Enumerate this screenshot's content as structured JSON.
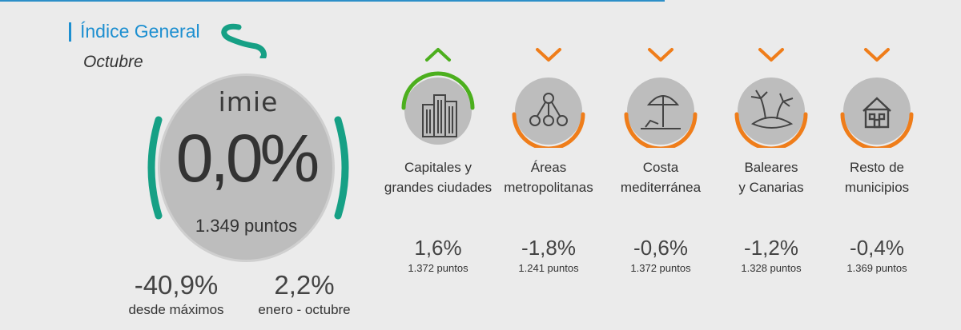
{
  "header": {
    "title": "Índice General",
    "subtitle": "Octubre"
  },
  "main": {
    "logo": "imie",
    "value": "0,0%",
    "points": "1.349 puntos",
    "trend_color": "#16a085"
  },
  "stats": [
    {
      "value": "-40,9%",
      "label": "desde máximos"
    },
    {
      "value": "2,2%",
      "label": "enero - octubre"
    }
  ],
  "regions": [
    {
      "line1": "Capitales y",
      "line2": "grandes ciudades",
      "value": "1,6%",
      "points": "1.372 puntos",
      "direction": "up",
      "color": "#4caf1e",
      "icon": "buildings-icon"
    },
    {
      "line1": "Áreas",
      "line2": "metropolitanas",
      "value": "-1,8%",
      "points": "1.241 puntos",
      "direction": "down",
      "color": "#ef7d1a",
      "icon": "network-icon"
    },
    {
      "line1": "Costa",
      "line2": "mediterránea",
      "value": "-0,6%",
      "points": "1.372 puntos",
      "direction": "down",
      "color": "#ef7d1a",
      "icon": "beach-umbrella-icon"
    },
    {
      "line1": "Baleares",
      "line2": "y Canarias",
      "value": "-1,2%",
      "points": "1.328 puntos",
      "direction": "down",
      "color": "#ef7d1a",
      "icon": "island-palm-icon"
    },
    {
      "line1": "Resto de",
      "line2": "municipios",
      "value": "-0,4%",
      "points": "1.369 puntos",
      "direction": "down",
      "color": "#ef7d1a",
      "icon": "house-icon"
    }
  ]
}
